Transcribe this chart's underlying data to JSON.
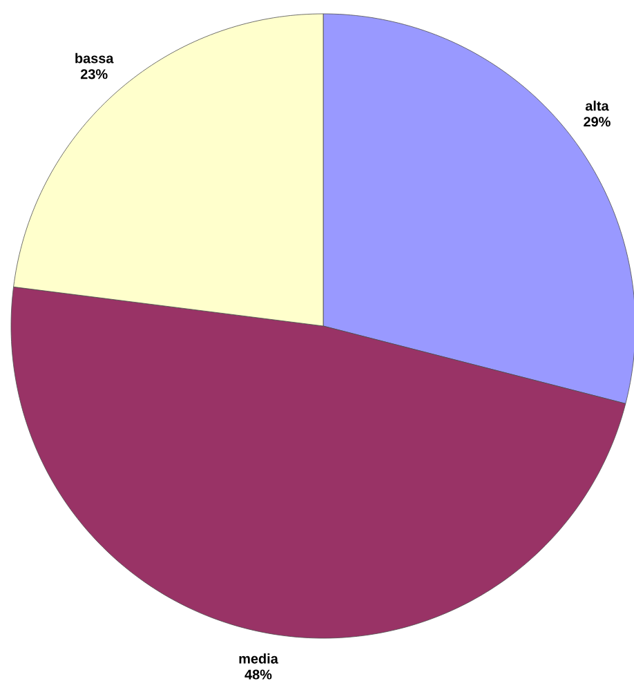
{
  "chart_data": {
    "type": "pie",
    "categories": [
      "alta",
      "media",
      "bassa"
    ],
    "values": [
      29,
      48,
      23
    ],
    "colors": [
      "#9999ff",
      "#993366",
      "#ffffcc"
    ],
    "value_labels": [
      "29%",
      "48%",
      "23%"
    ]
  }
}
